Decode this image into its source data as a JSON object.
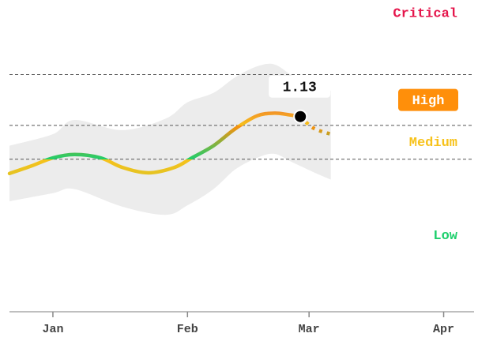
{
  "chart_data": {
    "type": "line",
    "x": [
      -10,
      -5,
      0,
      5,
      11,
      16,
      22,
      28,
      32,
      37,
      42,
      47,
      51,
      54,
      57
    ],
    "values": [
      0.29,
      0.4,
      0.52,
      0.57,
      0.52,
      0.38,
      0.3,
      0.38,
      0.52,
      0.7,
      0.95,
      1.14,
      1.18,
      1.16,
      1.13
    ],
    "forecast_x": [
      60,
      64
    ],
    "forecast_values": [
      0.96,
      0.87
    ],
    "band_x": [
      -10,
      0,
      5,
      16,
      26,
      31,
      37,
      42,
      47,
      51,
      55,
      60,
      64
    ],
    "band_upper": [
      0.7,
      0.87,
      1.08,
      0.93,
      1.1,
      1.34,
      1.48,
      1.71,
      1.87,
      1.9,
      1.74,
      1.57,
      1.51
    ],
    "band_lower": [
      -0.12,
      0.0,
      0.06,
      -0.2,
      -0.32,
      -0.18,
      0.06,
      0.35,
      0.52,
      0.58,
      0.46,
      0.31,
      0.2
    ],
    "band_color": "#ececec",
    "thresholds": [
      0.5,
      1.0,
      1.75
    ],
    "levels": [
      {
        "name": "Low",
        "color": "#1dcf6c"
      },
      {
        "name": "Medium",
        "color": "#f7c21b"
      },
      {
        "name": "High",
        "color": "#ff8f0a"
      },
      {
        "name": "Critical",
        "color": "#e5154b"
      }
    ],
    "xlim": [
      -10,
      97
    ],
    "ylim": [
      -1.75,
      2.85
    ],
    "xticks": [
      {
        "value": 0,
        "label": "Jan"
      },
      {
        "value": 31,
        "label": "Feb"
      },
      {
        "value": 59,
        "label": "Mar"
      },
      {
        "value": 90,
        "label": "Apr"
      }
    ]
  }
}
